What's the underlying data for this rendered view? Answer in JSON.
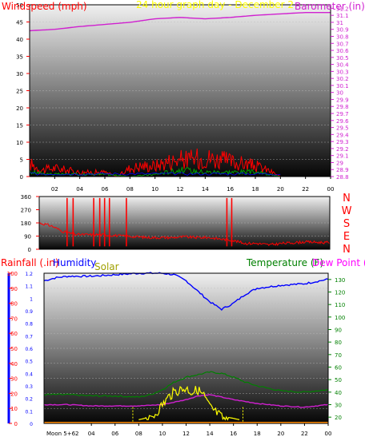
{
  "colors": {
    "wind": "#ff0000",
    "gust": "#00a000",
    "wind_low": "#0000ff",
    "baro": "#d020d0",
    "header": "#ffff00",
    "dir": "#ff0000",
    "humidity": "#0000ff",
    "temp": "#008000",
    "solar": "#ffff00",
    "dewpoint": "#d020d0",
    "rain": "#ff0000",
    "hum_axis": "#0000ff",
    "solar_title": "#a0a000",
    "temp_title": "#008000",
    "dew_title": "#ff00ff"
  },
  "header": {
    "wind_title": "Windspeed (mph)",
    "center_title": "24 hour graph day - December 2",
    "baro_title": "Barometer (in)"
  },
  "direction_letters": [
    "N",
    "W",
    "S",
    "E",
    "N"
  ],
  "bottom_titles": {
    "rain": "Rainfall (.in)",
    "humidity": "Humidity",
    "solar": "Solar",
    "temp": "Temperature (F)",
    "dewpoint": "Dew Point ("
  },
  "moon_label": "Moon 5+62",
  "x_ticks": [
    "02",
    "04",
    "06",
    "08",
    "10",
    "12",
    "14",
    "16",
    "18",
    "20",
    "22",
    "00"
  ],
  "chart_data": [
    {
      "type": "line",
      "name": "wind_baro",
      "x_range": [
        0,
        24
      ],
      "wind_axis": [
        0,
        5,
        10,
        15,
        20,
        25,
        30,
        35,
        40,
        45,
        50
      ],
      "baro_axis": [
        "28.8",
        "28.9",
        "29",
        "29.1",
        "29.2",
        "29.3",
        "29.4",
        "29.5",
        "29.6",
        "29.7",
        "29.8",
        "29.9",
        "30",
        "30.1",
        "30.2",
        "30.3",
        "30.4",
        "30.5",
        "30.6",
        "30.7",
        "30.8",
        "30.9",
        "31",
        "31.1",
        "31.2"
      ],
      "baro_ylim": [
        28.8,
        31.25
      ],
      "wind_ylim": [
        0,
        50
      ],
      "series": [
        {
          "key": "baro",
          "x": [
            0,
            2,
            4,
            6,
            8,
            10,
            12,
            14,
            16,
            18,
            20,
            22,
            24
          ],
          "y": [
            30.88,
            30.9,
            30.94,
            30.97,
            31.0,
            31.05,
            31.07,
            31.05,
            31.07,
            31.1,
            31.12,
            31.14,
            31.14
          ]
        },
        {
          "key": "wind_env",
          "x": [
            0,
            1,
            2,
            3,
            4,
            5,
            6,
            7,
            8,
            9,
            10,
            11,
            12,
            13,
            14,
            15,
            16,
            17,
            18,
            19,
            20
          ],
          "y": [
            6,
            3,
            4,
            3,
            2,
            2,
            2,
            0,
            4,
            5,
            5,
            7,
            8,
            8,
            9,
            8,
            7,
            6,
            5,
            3,
            0
          ]
        },
        {
          "key": "gust_env",
          "x": [
            0,
            2,
            4,
            6,
            8,
            10,
            12,
            14,
            16,
            18,
            20
          ],
          "y": [
            2,
            1,
            1,
            1,
            0,
            1,
            3,
            2,
            2,
            2,
            0
          ]
        }
      ]
    },
    {
      "type": "line",
      "name": "wind_direction",
      "x_range": [
        0,
        24
      ],
      "y_axis": [
        0,
        90,
        180,
        270,
        360
      ],
      "ylim": [
        0,
        360
      ],
      "series": [
        {
          "key": "dir",
          "x": [
            0,
            1,
            2,
            3,
            4,
            5,
            6,
            7,
            8,
            9,
            10,
            11,
            12,
            13,
            14,
            15,
            16,
            17,
            18,
            19,
            20,
            22,
            24
          ],
          "y": [
            180,
            160,
            120,
            100,
            100,
            100,
            95,
            90,
            85,
            80,
            80,
            80,
            85,
            80,
            80,
            70,
            60,
            40,
            40,
            30,
            40,
            50,
            45
          ]
        }
      ],
      "spikes_x": [
        2.3,
        2.8,
        4.5,
        5.0,
        5.4,
        5.8,
        7.2,
        15.5,
        15.9
      ]
    },
    {
      "type": "line",
      "name": "rain_humidity_solar_temp",
      "x_range": [
        0,
        24
      ],
      "rain_axis": [
        "0",
        "0.1",
        "0.2",
        "0.3",
        "0.4",
        "0.5",
        "0.6",
        "0.7",
        "0.8",
        "0.9",
        "1",
        "1.1",
        "1.2"
      ],
      "humidity_axis": [
        0,
        10,
        20,
        30,
        40,
        50,
        60,
        70,
        80,
        90,
        100
      ],
      "temp_axis": [
        20,
        30,
        40,
        50,
        60,
        70,
        80,
        90,
        100,
        110,
        120,
        130
      ],
      "temp_ylim": [
        15,
        135
      ],
      "series": [
        {
          "key": "humidity",
          "x": [
            0,
            1,
            2,
            4,
            6,
            8,
            9,
            10,
            11,
            12,
            13,
            14,
            15,
            16,
            17,
            18,
            20,
            22,
            24
          ],
          "y": [
            95,
            97,
            98,
            98,
            99,
            100,
            100,
            100,
            99,
            95,
            88,
            81,
            76,
            80,
            86,
            90,
            92,
            93,
            96
          ]
        },
        {
          "key": "temp",
          "x": [
            0,
            2,
            4,
            6,
            8,
            9,
            10,
            11,
            12,
            13,
            14,
            15,
            16,
            17,
            18,
            20,
            22,
            24
          ],
          "y": [
            38,
            38,
            37,
            37,
            36,
            38,
            42,
            48,
            52,
            54,
            56,
            55,
            52,
            48,
            45,
            41,
            40,
            42
          ]
        },
        {
          "key": "dewpoint",
          "x": [
            0,
            2,
            4,
            6,
            8,
            10,
            12,
            13,
            14,
            15,
            16,
            18,
            20,
            22,
            24
          ],
          "y": [
            30,
            30,
            29,
            29,
            29,
            30,
            34,
            37,
            38,
            36,
            34,
            31,
            29,
            28,
            30
          ]
        },
        {
          "key": "solar",
          "x": [
            8,
            8.5,
            9,
            9.5,
            10,
            10.5,
            11,
            11.5,
            12,
            12.5,
            13,
            13.5,
            14,
            14.5,
            15,
            15.5,
            16,
            16.5
          ],
          "y": [
            18,
            19,
            22,
            28,
            34,
            40,
            44,
            46,
            47,
            44,
            46,
            41,
            32,
            28,
            24,
            20,
            19,
            18
          ]
        }
      ],
      "solar_markers_x": [
        7.5,
        16.8
      ]
    }
  ]
}
